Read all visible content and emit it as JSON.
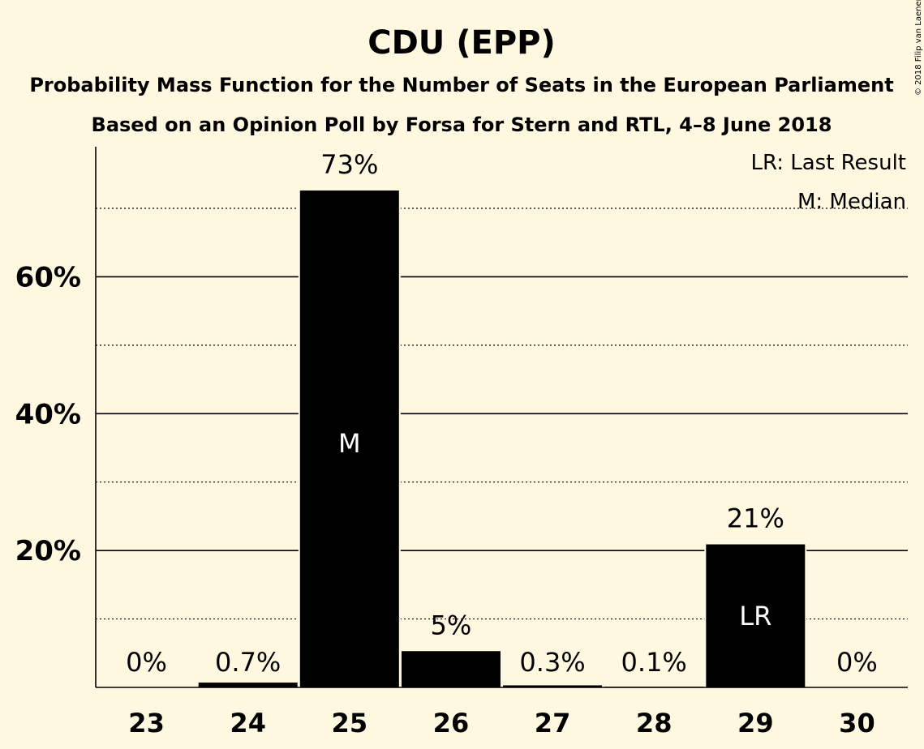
{
  "chart_data": {
    "type": "bar",
    "title": "CDU (EPP)",
    "subtitle_1": "Probability Mass Function for the Number of Seats in the European Parliament",
    "subtitle_2": "Based on an Opinion Poll by Forsa for Stern and RTL, 4–8 June 2018",
    "categories": [
      "23",
      "24",
      "25",
      "26",
      "27",
      "28",
      "29",
      "30"
    ],
    "values": [
      0,
      0.7,
      72.6,
      5.3,
      0.3,
      0.1,
      20.9,
      0
    ],
    "value_labels": [
      "0%",
      "0.7%",
      "73%",
      "5%",
      "0.3%",
      "0.1%",
      "21%",
      "0%"
    ],
    "bar_markers": [
      "",
      "",
      "M",
      "",
      "",
      "",
      "LR",
      ""
    ],
    "ylim": [
      0,
      79
    ],
    "y_ticks": [
      20,
      40,
      60
    ],
    "y_tick_labels": [
      "20%",
      "40%",
      "60%"
    ],
    "y_dotted_lines": [
      10,
      30,
      50,
      70
    ],
    "legend": [
      "LR: Last Result",
      "M: Median"
    ],
    "legend_position": "top-right",
    "copyright": "© 2018 Filip van Laenen",
    "colors": {
      "background": "#fff8e1",
      "bar": "#000000",
      "inbar_text": "#ffffff"
    }
  }
}
